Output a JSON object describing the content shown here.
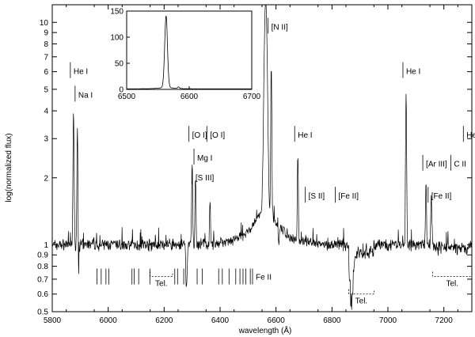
{
  "chart_data": {
    "type": "line",
    "title": "",
    "xlabel": "wavelength (Å)",
    "ylabel": "log(normalized flux)",
    "xlim": [
      5800,
      7300
    ],
    "ylim": [
      0.5,
      12
    ],
    "yscale": "log",
    "grid": false,
    "xticks": [
      "5800",
      "6000",
      "6200",
      "6400",
      "6600",
      "6800",
      "7000",
      "7200"
    ],
    "yticks": [
      "0.5",
      "0.6",
      "0.7",
      "0.8",
      "0.9",
      "1",
      "2",
      "3",
      "4",
      "5",
      "6",
      "7",
      "8",
      "9",
      "10"
    ],
    "series": [
      {
        "name": "",
        "continuum": 1.0,
        "peaks": [
          {
            "x": 5876,
            "y": 4.0
          },
          {
            "x": 5890,
            "y": 3.7
          },
          {
            "x": 6300,
            "y": 2.3
          },
          {
            "x": 6312,
            "y": 2.0
          },
          {
            "x": 6364,
            "y": 1.6
          },
          {
            "x": 6563,
            "y": 12.0
          },
          {
            "x": 6583,
            "y": 6.0
          },
          {
            "x": 6678,
            "y": 2.5
          },
          {
            "x": 7065,
            "y": 4.8
          },
          {
            "x": 7136,
            "y": 1.9
          },
          {
            "x": 7155,
            "y": 1.7
          }
        ],
        "dips": [
          {
            "x": 5892,
            "y": 0.55
          },
          {
            "x": 6280,
            "y": 0.62
          },
          {
            "x": 6610,
            "y": 0.8
          },
          {
            "x": 6870,
            "y": 0.62
          }
        ]
      }
    ],
    "annotations": [
      {
        "text": "He I",
        "x": 5876,
        "y": 6.0
      },
      {
        "text": "Na I",
        "x": 5893,
        "y": 4.7
      },
      {
        "text": "[O I]",
        "x": 6300,
        "y": 3.1
      },
      {
        "text": "[O I]",
        "x": 6364,
        "y": 3.1
      },
      {
        "text": "Mg I",
        "x": 6318,
        "y": 2.45
      },
      {
        "text": "[S III]",
        "x": 6312,
        "y": 2.0
      },
      {
        "text": "[N II]",
        "x": 6583,
        "y": 9.5
      },
      {
        "text": "He I",
        "x": 6678,
        "y": 3.1
      },
      {
        "text": "[S II]",
        "x": 6716,
        "y": 1.65
      },
      {
        "text": "[Fe II]",
        "x": 6823,
        "y": 1.65
      },
      {
        "text": "He I",
        "x": 7065,
        "y": 6.0
      },
      {
        "text": "[Ar III]",
        "x": 7136,
        "y": 2.3
      },
      {
        "text": "[Fe II]",
        "x": 7155,
        "y": 1.65
      },
      {
        "text": "C II",
        "x": 7236,
        "y": 2.3
      },
      {
        "text": "He I",
        "x": 7281,
        "y": 3.1
      }
    ],
    "line_markers": [
      {
        "text": "Fe II",
        "x": [
          5960,
          5975,
          5992,
          6002,
          6085,
          6093,
          6109,
          6149,
          6238,
          6248,
          6270,
          6318,
          6336,
          6395,
          6408,
          6432,
          6456,
          6471,
          6482,
          6492,
          6508,
          6516
        ],
        "y": 0.72
      }
    ],
    "telluric": [
      {
        "text": "Tel.",
        "x": [
          6150,
          6230
        ],
        "y": 0.72
      },
      {
        "text": "Tel.",
        "x": [
          6860,
          6950
        ],
        "y": 0.6
      },
      {
        "text": "Tel.",
        "x": [
          7160,
          7300
        ],
        "y": 0.72
      }
    ],
    "inset": {
      "type": "line",
      "xlim": [
        6500,
        6700
      ],
      "ylim": [
        0,
        150
      ],
      "xticks": [
        "6500",
        "6600",
        "6700"
      ],
      "yticks": [
        "0",
        "50",
        "100",
        "150"
      ],
      "peak": {
        "x": 6563,
        "y": 137
      }
    }
  }
}
